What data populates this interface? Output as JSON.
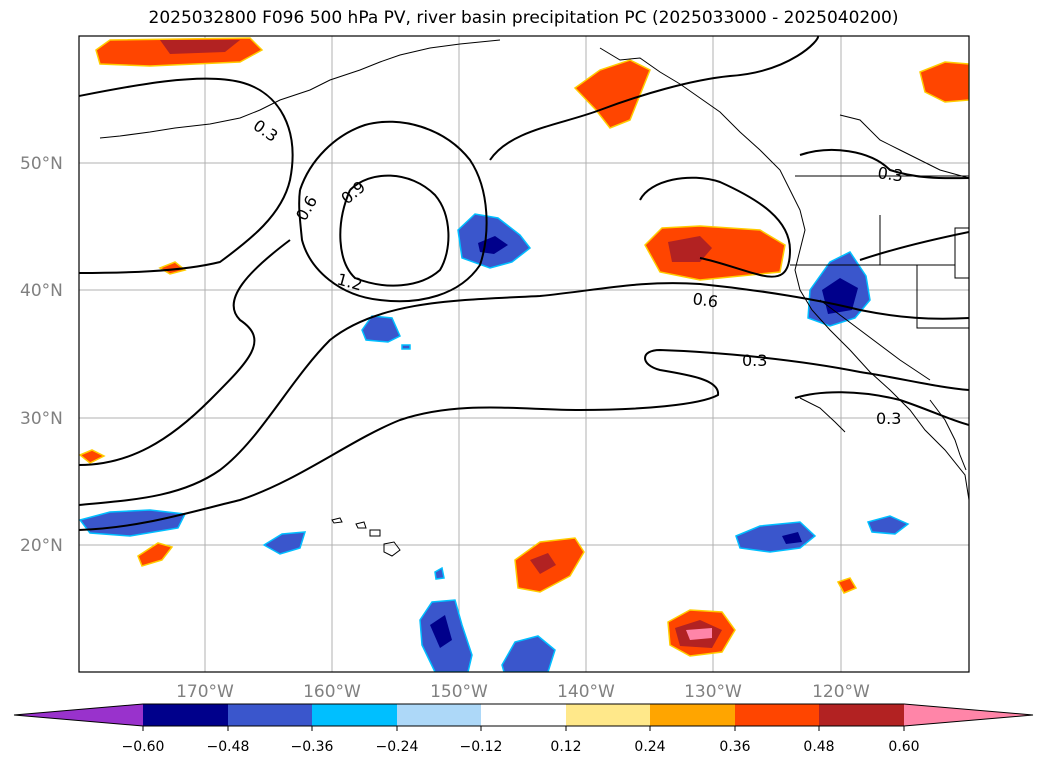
{
  "title": "2025032800 F096 500 hPa PV, river basin precipitation PC (2025033000 - 2025040200)",
  "latitude_labels": [
    "50°N",
    "40°N",
    "30°N",
    "20°N"
  ],
  "longitude_labels": [
    "170°W",
    "160°W",
    "150°W",
    "140°W",
    "130°W",
    "120°W"
  ],
  "contour_labels": [
    "0.3",
    "0.6",
    "0.9",
    "1.2",
    "0.6",
    "0.3",
    "0.3",
    "0.3"
  ],
  "colorbar": {
    "colors": [
      "#9932cc",
      "#00008b",
      "#3a56cc",
      "#00bfff",
      "#add8f8",
      "#ffffff",
      "#ffe88a",
      "#ffa500",
      "#ff4500",
      "#b22222",
      "#ff85a8",
      "#ff85a8"
    ],
    "ticks": [
      "−0.60",
      "−0.48",
      "−0.36",
      "−0.24",
      "−0.12",
      "0.12",
      "0.24",
      "0.36",
      "0.48",
      "0.60"
    ]
  }
}
